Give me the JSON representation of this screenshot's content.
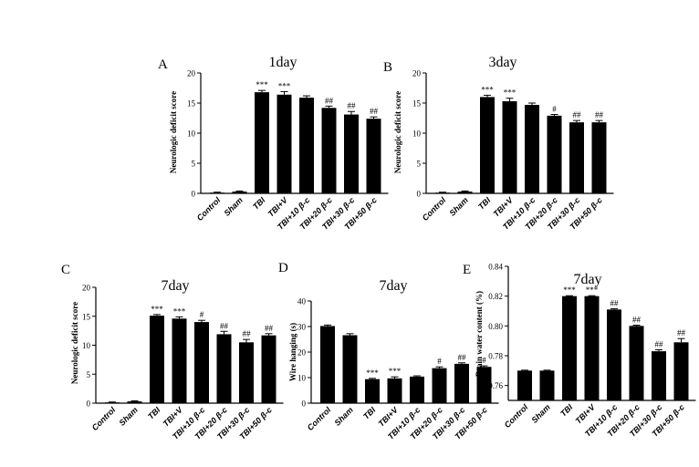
{
  "colors": {
    "bar": "#000000",
    "background": "#ffffff"
  },
  "chart_data": [
    {
      "panel": "A",
      "title": "1day",
      "type": "bar",
      "ylabel": "Neurologic deficit score",
      "ylim": [
        0,
        20
      ],
      "yticks": [
        "0",
        "5",
        "10",
        "15",
        "20"
      ],
      "categories": [
        "Control",
        "Sham",
        "TBI",
        "TBI+V",
        "TBI+10 β-c",
        "TBI+20 β-c",
        "TBI+30 β-c",
        "TBI+50 β-c"
      ],
      "values": [
        0.1,
        0.3,
        16.8,
        16.4,
        15.9,
        14.2,
        13.1,
        12.4
      ],
      "errors": [
        0.1,
        0.1,
        0.3,
        0.5,
        0.3,
        0.3,
        0.5,
        0.3
      ],
      "annotations": [
        "",
        "",
        "***",
        "***",
        "",
        "##",
        "##",
        "##"
      ]
    },
    {
      "panel": "B",
      "title": "3day",
      "type": "bar",
      "ylabel": "Neurologic deficit score",
      "ylim": [
        0,
        20
      ],
      "yticks": [
        "0",
        "5",
        "10",
        "15",
        "20"
      ],
      "categories": [
        "Control",
        "Sham",
        "TBI",
        "TBI+V",
        "TBI+10 β-c",
        "TBI+20 β-c",
        "TBI+30 β-c",
        "TBI+50 β-c"
      ],
      "values": [
        0.1,
        0.3,
        16.0,
        15.3,
        14.7,
        12.9,
        11.8,
        11.8
      ],
      "errors": [
        0.1,
        0.1,
        0.3,
        0.5,
        0.3,
        0.2,
        0.3,
        0.3
      ],
      "annotations": [
        "",
        "",
        "***",
        "***",
        "",
        "#",
        "##",
        "##"
      ]
    },
    {
      "panel": "C",
      "title": "7day",
      "type": "bar",
      "ylabel": "Neurologic deficit score",
      "ylim": [
        0,
        20
      ],
      "yticks": [
        "0",
        "5",
        "10",
        "15",
        "20"
      ],
      "categories": [
        "Control",
        "Sham",
        "TBI",
        "TBI+V",
        "TBI+10 β-c",
        "TBI+20 β-c",
        "TBI+30 β-c",
        "TBI+50 β-c"
      ],
      "values": [
        0.1,
        0.3,
        15.1,
        14.6,
        14.0,
        11.9,
        10.5,
        11.7
      ],
      "errors": [
        0.1,
        0.1,
        0.2,
        0.3,
        0.3,
        0.5,
        0.5,
        0.3
      ],
      "annotations": [
        "",
        "",
        "***",
        "***",
        "#",
        "##",
        "##",
        "##"
      ]
    },
    {
      "panel": "D",
      "title": "7day",
      "type": "bar",
      "ylabel": "Wire hanging (s)",
      "ylim": [
        0,
        40
      ],
      "yticks": [
        "0",
        "10",
        "20",
        "30",
        "40"
      ],
      "categories": [
        "Control",
        "Sham",
        "TBI",
        "TBI+V",
        "TBI+10 β-c",
        "TBI+20 β-c",
        "TBI+30 β-c",
        "TBI+50 β-c"
      ],
      "values": [
        30.2,
        26.6,
        9.4,
        9.7,
        10.4,
        13.7,
        15.4,
        14.2
      ],
      "errors": [
        0.4,
        0.6,
        0.3,
        0.6,
        0.3,
        0.5,
        0.4,
        0.4
      ],
      "annotations": [
        "",
        "",
        "***",
        "***",
        "",
        "#",
        "##",
        "#"
      ]
    },
    {
      "panel": "E",
      "title": "7day",
      "type": "bar",
      "ylabel": "Brain water content (%)",
      "ylim": [
        0.75,
        0.84
      ],
      "yticks": [
        "0.76",
        "0.78",
        "0.80",
        "0.82",
        "0.84"
      ],
      "categories": [
        "Control",
        "Sham",
        "TBI",
        "TBI+V",
        "TBI+10 β-c",
        "TBI+20 β-c",
        "TBI+30 β-c",
        "TBI+50 β-c"
      ],
      "values": [
        0.77,
        0.77,
        0.82,
        0.82,
        0.811,
        0.8,
        0.783,
        0.789
      ],
      "errors": [
        0.0003,
        0.0003,
        0.0003,
        0.0003,
        0.0005,
        0.0005,
        0.001,
        0.0025
      ],
      "annotations": [
        "",
        "",
        "***",
        "***",
        "##",
        "##",
        "##",
        "##"
      ]
    }
  ]
}
